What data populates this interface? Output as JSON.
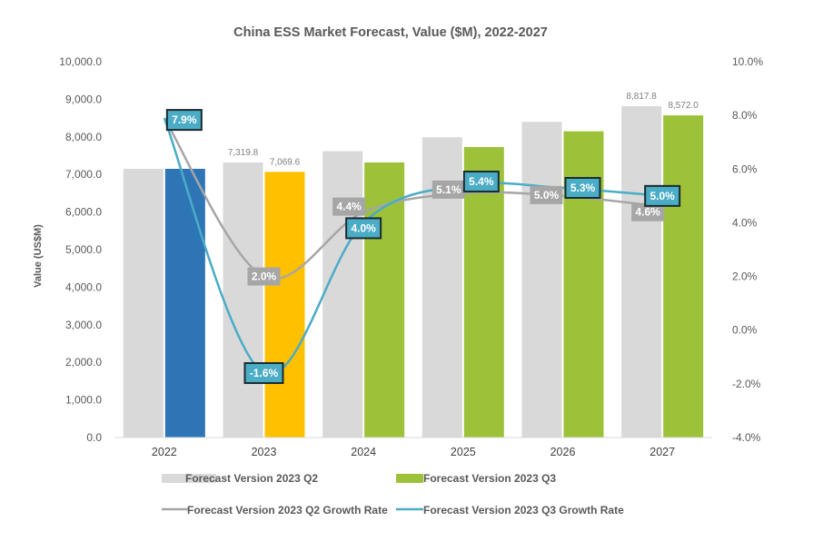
{
  "chart_data": {
    "type": "bar",
    "title": "China ESS Market Forecast, Value ($M), 2022-2027",
    "categories": [
      "2022",
      "2023",
      "2024",
      "2025",
      "2026",
      "2027"
    ],
    "ylabel": "Value (US$M)",
    "ylim": [
      0,
      10000
    ],
    "y_ticks": [
      "0.0",
      "1,000.0",
      "2,000.0",
      "3,000.0",
      "4,000.0",
      "5,000.0",
      "6,000.0",
      "7,000.0",
      "8,000.0",
      "9,000.0",
      "10,000.0"
    ],
    "y2lim": [
      -4.0,
      10.0
    ],
    "y2_ticks": [
      "-4.0%",
      "-2.0%",
      "0.0%",
      "2.0%",
      "4.0%",
      "6.0%",
      "8.0%",
      "10.0%"
    ],
    "grid": false,
    "legend_position": "bottom",
    "series": [
      {
        "name": "Forecast Version 2023 Q2",
        "kind": "bar",
        "axis": "left",
        "values": [
          7150,
          7319.8,
          7620,
          7990,
          8400,
          8817.8
        ],
        "value_labels": [
          "",
          "7,319.8",
          "",
          "",
          "",
          "8,817.8"
        ],
        "color": "#d9d9d9"
      },
      {
        "name": "Forecast Version 2023 Q3",
        "kind": "bar",
        "axis": "left",
        "values": [
          7150,
          7069.6,
          7320,
          7730,
          8150,
          8572.0
        ],
        "value_labels": [
          "",
          "7,069.6",
          "",
          "",
          "",
          "8,572.0"
        ],
        "colors": [
          "#2e75b6",
          "#ffc000",
          "#9dc23a",
          "#9dc23a",
          "#9dc23a",
          "#9dc23a"
        ]
      },
      {
        "name": "Forecast Version 2023 Q2 Growth Rate",
        "kind": "line",
        "axis": "right",
        "values": [
          null,
          2.0,
          4.4,
          5.1,
          5.0,
          4.6
        ],
        "labels": [
          "",
          "2.0%",
          "4.4%",
          "5.1%",
          "5.0%",
          "4.6%"
        ],
        "color": "#a6a6a6"
      },
      {
        "name": "Forecast Version 2023 Q3 Growth Rate",
        "kind": "line",
        "axis": "right",
        "values": [
          7.9,
          -1.6,
          4.0,
          5.4,
          5.3,
          5.0
        ],
        "labels": [
          "7.9%",
          "-1.6%",
          "4.0%",
          "5.4%",
          "5.3%",
          "5.0%"
        ],
        "color": "#4bacc6"
      }
    ]
  }
}
